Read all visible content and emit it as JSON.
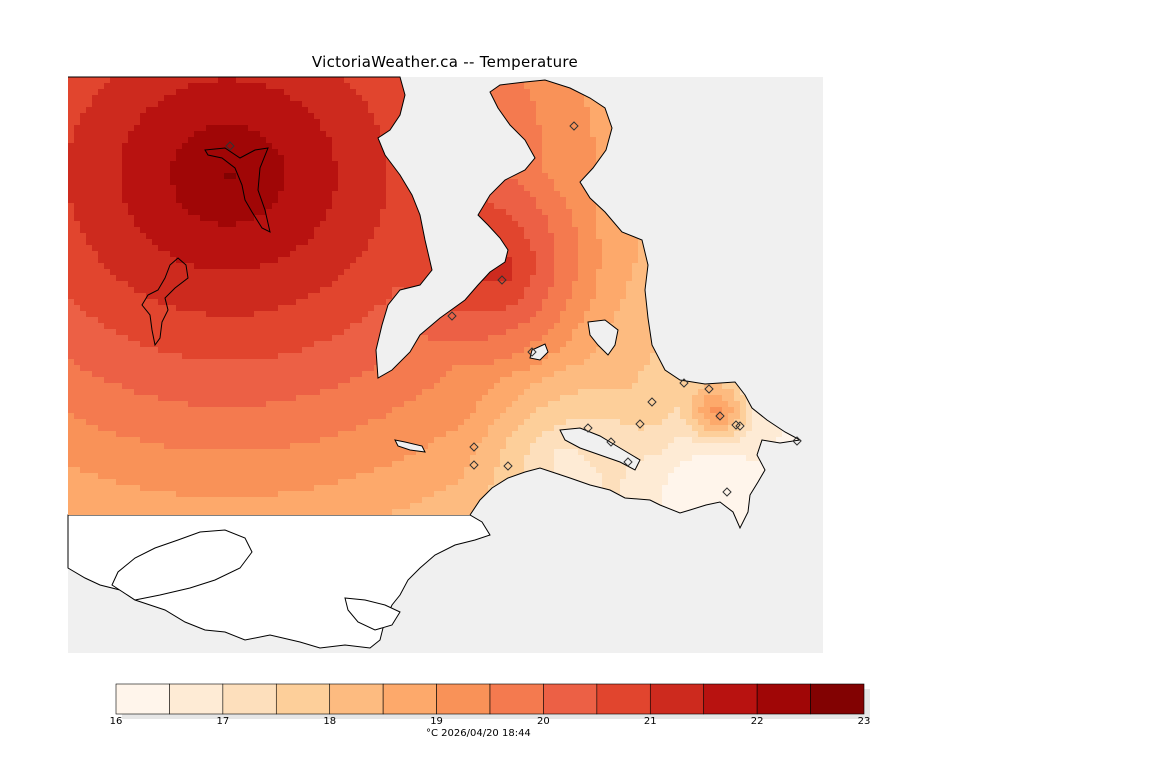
{
  "title": "VictoriaWeather.ca -- Temperature",
  "colorbar": {
    "units": "°C",
    "timestamp": "2026/04/20 18:44",
    "footer": "°C  2026/04/20 18:44",
    "min": 16,
    "max": 23,
    "tick_labels": [
      "16",
      "17",
      "18",
      "19",
      "20",
      "21",
      "22",
      "23"
    ],
    "bins": [
      {
        "from": 16.0,
        "to": 16.5,
        "color": "#fff5eb"
      },
      {
        "from": 16.5,
        "to": 17.0,
        "color": "#feebd5"
      },
      {
        "from": 17.0,
        "to": 17.5,
        "color": "#fddfbc"
      },
      {
        "from": 17.5,
        "to": 18.0,
        "color": "#fdcf9a"
      },
      {
        "from": 18.0,
        "to": 18.5,
        "color": "#fdbb80"
      },
      {
        "from": 18.5,
        "to": 19.0,
        "color": "#fda96b"
      },
      {
        "from": 19.0,
        "to": 19.5,
        "color": "#f99258"
      },
      {
        "from": 19.5,
        "to": 20.0,
        "color": "#f47a4f"
      },
      {
        "from": 20.0,
        "to": 20.5,
        "color": "#ec6045"
      },
      {
        "from": 20.5,
        "to": 21.0,
        "color": "#e1452e"
      },
      {
        "from": 21.0,
        "to": 21.5,
        "color": "#cd2a1e"
      },
      {
        "from": 21.5,
        "to": 22.0,
        "color": "#b81210"
      },
      {
        "from": 22.0,
        "to": 22.5,
        "color": "#a00606"
      },
      {
        "from": 22.5,
        "to": 23.0,
        "color": "#820202"
      }
    ]
  },
  "map": {
    "background_color": "#f0f0f0",
    "water_color": "#ffffff",
    "station_count": 20
  }
}
